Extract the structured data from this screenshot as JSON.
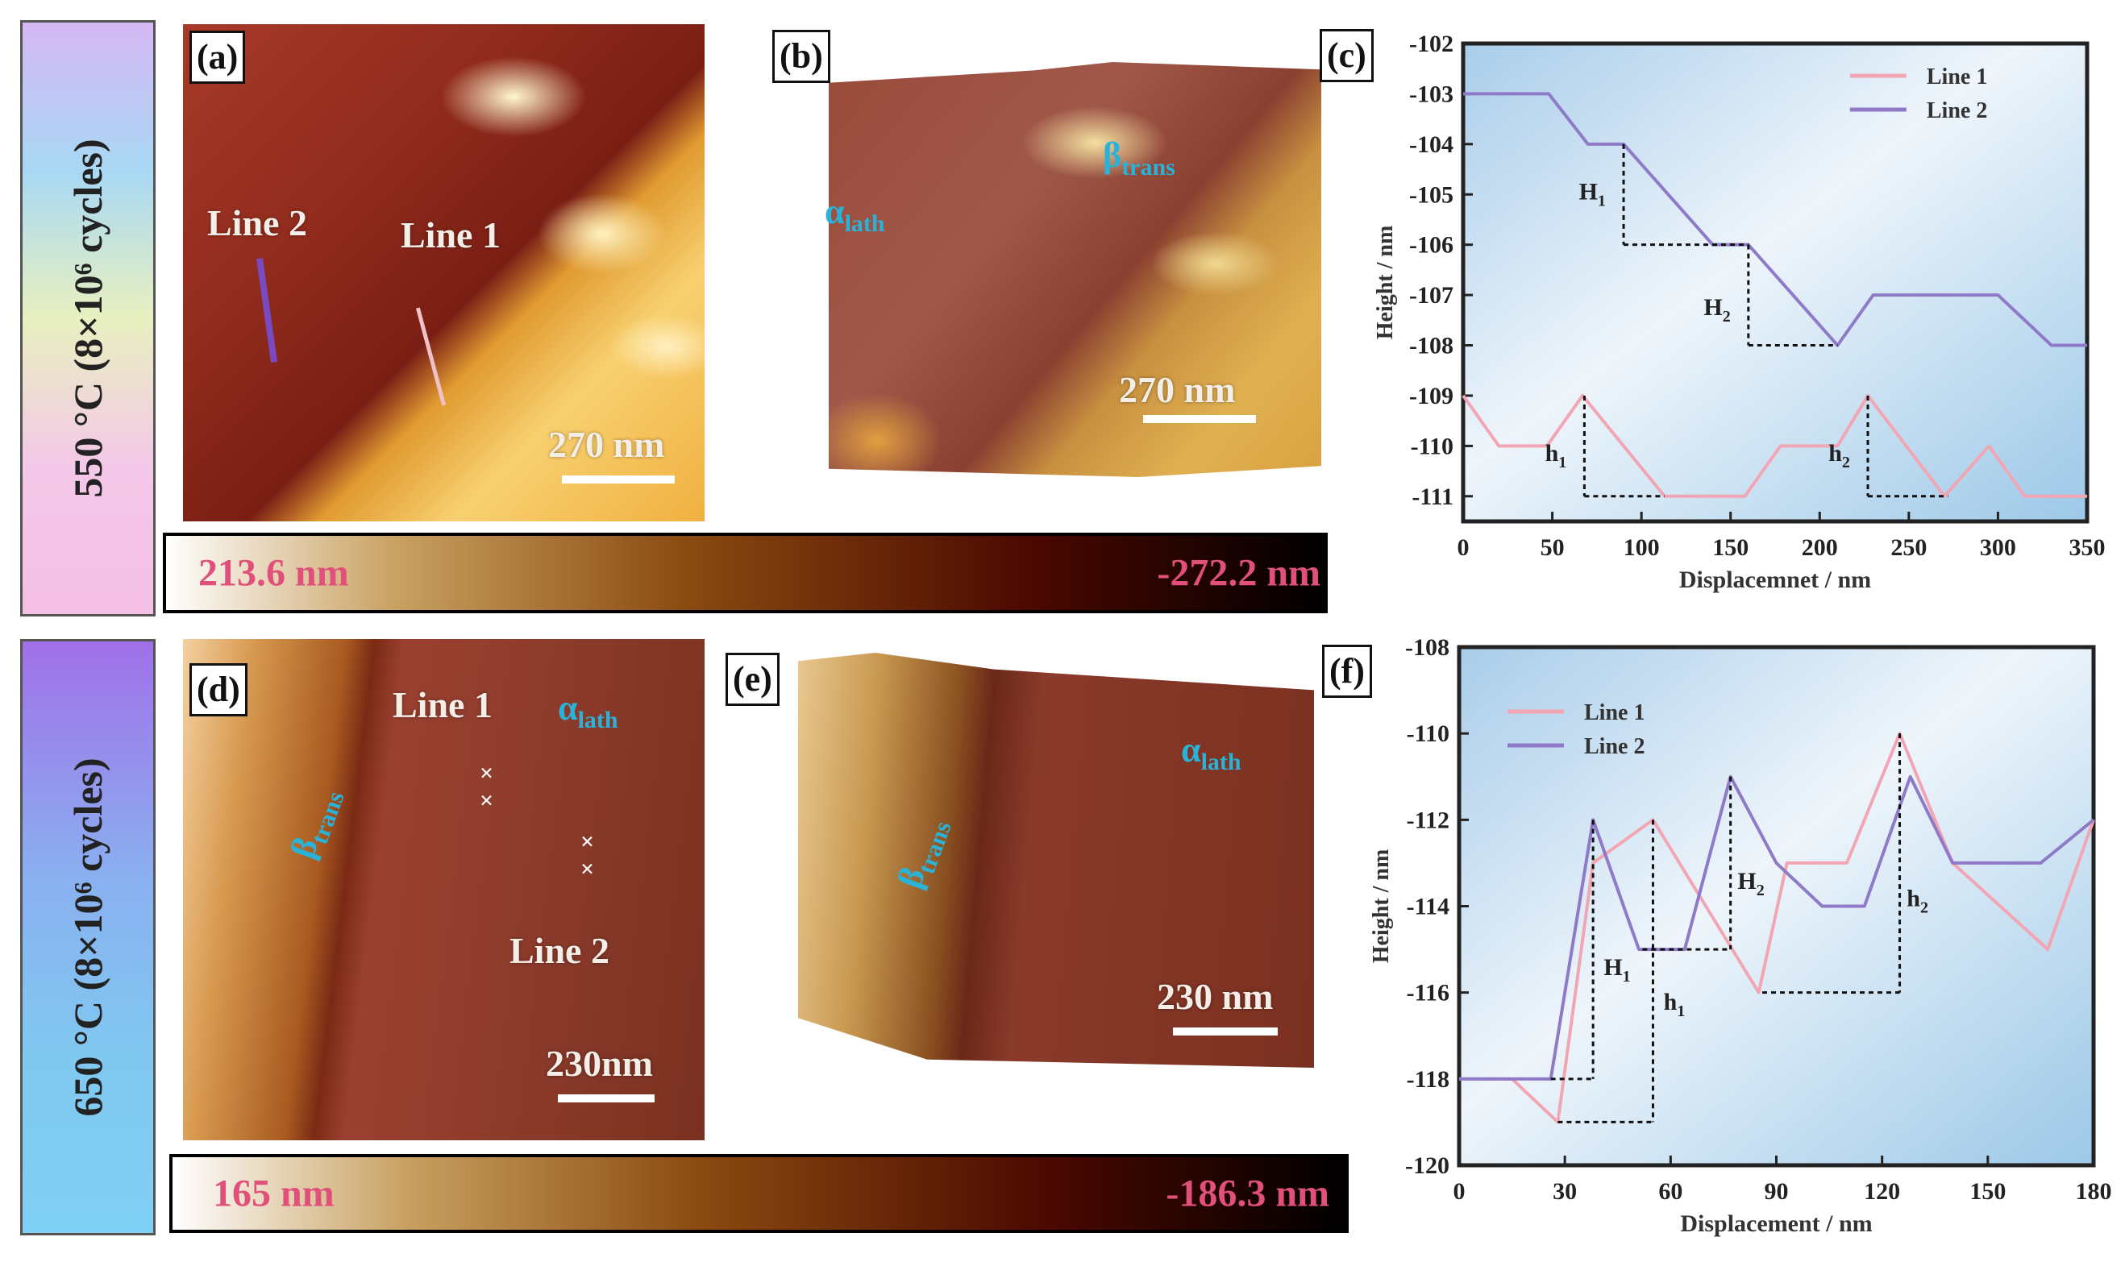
{
  "rows": [
    {
      "condition": "550 °C (8×10⁶ cycles)",
      "panel_a": {
        "label": "(a)",
        "line2": "Line 2",
        "line1": "Line 1",
        "scale": "270 nm"
      },
      "panel_b": {
        "label": "(b)",
        "alpha": "α",
        "alpha_sub": "lath",
        "beta": "β",
        "beta_sub": "trans",
        "scale": "270 nm"
      },
      "panel_c": {
        "label": "(c)"
      },
      "colorbar": {
        "max": "213.6 nm",
        "min": "-272.2 nm"
      }
    },
    {
      "condition": "650 °C (8×10⁶ cycles)",
      "panel_d": {
        "label": "(d)",
        "line1": "Line 1",
        "line2": "Line 2",
        "alpha": "α",
        "alpha_sub": "lath",
        "beta": "β",
        "beta_sub": "trans",
        "scale": "230nm"
      },
      "panel_e": {
        "label": "(e)",
        "alpha": "α",
        "alpha_sub": "lath",
        "beta": "β",
        "beta_sub": "trans",
        "scale": "230 nm"
      },
      "panel_f": {
        "label": "(f)"
      },
      "colorbar": {
        "max": "165 nm",
        "min": "-186.3 nm"
      }
    }
  ],
  "colors": {
    "line1": "#f2a6b4",
    "line2": "#8f7ac8",
    "label_cyan": "#2ab3d8",
    "colorbar_text": "#e0507a"
  },
  "chart_data": [
    {
      "type": "line",
      "xlabel": "Displacemnet / nm",
      "ylabel": "Height / nm",
      "xlim": [
        0,
        350
      ],
      "ylim": [
        -111.5,
        -102
      ],
      "xticks": [
        0,
        50,
        100,
        150,
        200,
        250,
        300,
        350
      ],
      "yticks": [
        -102,
        -103,
        -104,
        -105,
        -106,
        -107,
        -108,
        -109,
        -110,
        -111
      ],
      "legend": "top-right",
      "series": [
        {
          "name": "Line 1",
          "color": "#f2a6b4",
          "x": [
            0,
            20,
            47,
            67,
            113,
            158,
            178,
            210,
            227,
            270,
            295,
            315,
            350
          ],
          "y": [
            -109,
            -110,
            -110,
            -109,
            -111,
            -111,
            -110,
            -110,
            -109,
            -111,
            -110,
            -111,
            -111
          ]
        },
        {
          "name": "Line 2",
          "color": "#8f7ac8",
          "x": [
            0,
            48,
            70,
            90,
            140,
            160,
            210,
            230,
            300,
            330,
            350
          ],
          "y": [
            -103,
            -103,
            -104,
            -104,
            -106,
            -106,
            -108,
            -107,
            -107,
            -108,
            -108
          ]
        }
      ],
      "annotations": [
        {
          "text": "H",
          "sub": "1",
          "vx": 90,
          "vy": [
            -104,
            -106
          ],
          "hy": -106,
          "hx": [
            90,
            160
          ],
          "tx": 80,
          "ty": -105.1
        },
        {
          "text": "H",
          "sub": "2",
          "vx": 160,
          "vy": [
            -106,
            -108
          ],
          "hy": -108,
          "hx": [
            160,
            210
          ],
          "tx": 150,
          "ty": -107.4
        },
        {
          "text": "h",
          "sub": "1",
          "vx": 68,
          "vy": [
            -109,
            -111
          ],
          "hy": -111,
          "hx": [
            68,
            113
          ],
          "tx": 58,
          "ty": -110.3
        },
        {
          "text": "h",
          "sub": "2",
          "vx": 227,
          "vy": [
            -109,
            -111
          ],
          "hy": -111,
          "hx": [
            227,
            272
          ],
          "tx": 217,
          "ty": -110.3
        }
      ]
    },
    {
      "type": "line",
      "xlabel": "Displacement / nm",
      "ylabel": "Height / nm",
      "xlim": [
        0,
        180
      ],
      "ylim": [
        -120,
        -108
      ],
      "xticks": [
        0,
        30,
        60,
        90,
        120,
        150,
        180
      ],
      "yticks": [
        -108,
        -110,
        -112,
        -114,
        -116,
        -118,
        -120
      ],
      "legend": "top-left",
      "series": [
        {
          "name": "Line 1",
          "color": "#f2a6b4",
          "x": [
            0,
            15,
            28,
            38,
            55,
            85,
            93,
            110,
            125,
            140,
            167,
            180
          ],
          "y": [
            -118,
            -118,
            -119,
            -113,
            -112,
            -116,
            -113,
            -113,
            -110,
            -113,
            -115,
            -112
          ]
        },
        {
          "name": "Line 2",
          "color": "#8f7ac8",
          "x": [
            0,
            26,
            38,
            51,
            64,
            77,
            90,
            103,
            115,
            128,
            140,
            165,
            180
          ],
          "y": [
            -118,
            -118,
            -112,
            -115,
            -115,
            -111,
            -113,
            -114,
            -114,
            -111,
            -113,
            -113,
            -112
          ]
        }
      ],
      "annotations": [
        {
          "text": "H",
          "sub": "1",
          "vx": 38,
          "vy": [
            -112,
            -118
          ],
          "hy": -118,
          "hx": [
            26,
            38
          ],
          "tx": 41,
          "ty": -115.6
        },
        {
          "text": "h",
          "sub": "1",
          "vx": 55,
          "vy": [
            -112,
            -119
          ],
          "hy": -119,
          "hx": [
            28,
            55
          ],
          "tx": 58,
          "ty": -116.4
        },
        {
          "text": "H",
          "sub": "2",
          "vx": 77,
          "vy": [
            -111,
            -115
          ],
          "hy": -115,
          "hx": [
            52,
            77
          ],
          "tx": 79,
          "ty": -113.6
        },
        {
          "text": "h",
          "sub": "2",
          "vx": 125,
          "vy": [
            -110,
            -116
          ],
          "hy": -116,
          "hx": [
            86,
            125
          ],
          "tx": 127,
          "ty": -114
        }
      ]
    }
  ]
}
